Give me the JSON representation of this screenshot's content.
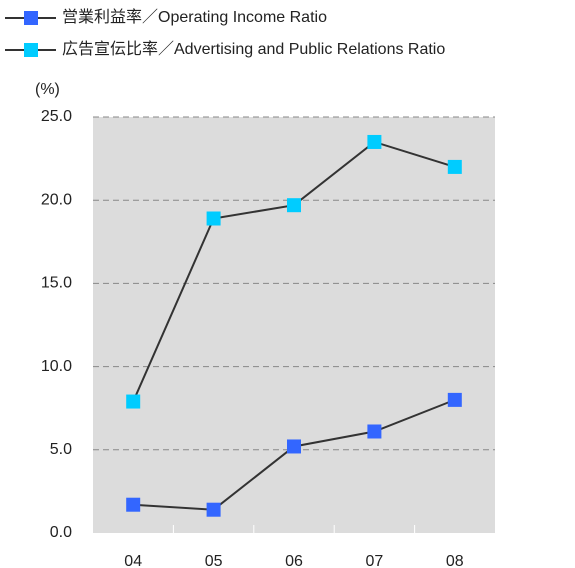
{
  "chart_data": {
    "type": "line",
    "y_label": "(%)",
    "categories": [
      "04",
      "05",
      "06",
      "07",
      "08"
    ],
    "series": [
      {
        "name": "営業利益率／Operating Income Ratio",
        "color": "#3366ff",
        "values": [
          1.7,
          1.4,
          5.2,
          6.1,
          8.0
        ]
      },
      {
        "name": "広告宣伝比率／Advertising and Public Relations Ratio",
        "color": "#00ccff",
        "values": [
          7.9,
          18.9,
          19.7,
          23.5,
          22.0
        ]
      }
    ],
    "line_color": "#333333",
    "ylim": [
      0,
      25
    ],
    "yticks": [
      {
        "value": 0,
        "label": "0.0"
      },
      {
        "value": 5,
        "label": "5.0"
      },
      {
        "value": 10,
        "label": "10.0"
      },
      {
        "value": 15,
        "label": "15.0"
      },
      {
        "value": 20,
        "label": "20.0"
      },
      {
        "value": 25,
        "label": "25.0"
      }
    ],
    "grid": true
  }
}
